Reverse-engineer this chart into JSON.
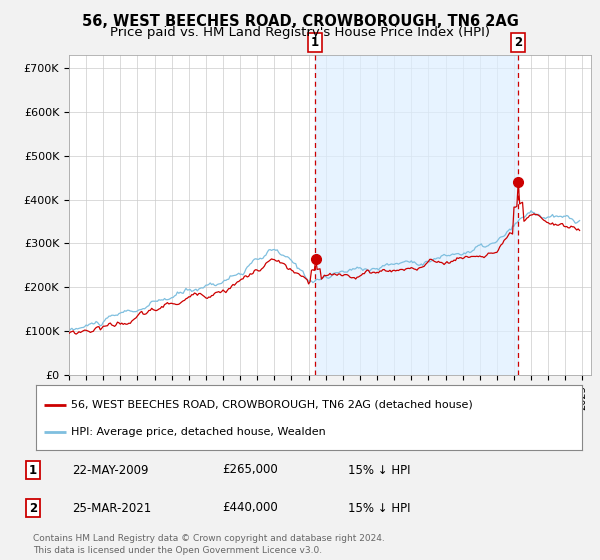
{
  "title": "56, WEST BEECHES ROAD, CROWBOROUGH, TN6 2AG",
  "subtitle": "Price paid vs. HM Land Registry's House Price Index (HPI)",
  "title_fontsize": 10.5,
  "subtitle_fontsize": 9.5,
  "ylabel_ticks": [
    "£0",
    "£100K",
    "£200K",
    "£300K",
    "£400K",
    "£500K",
    "£600K",
    "£700K"
  ],
  "ytick_values": [
    0,
    100000,
    200000,
    300000,
    400000,
    500000,
    600000,
    700000
  ],
  "ylim": [
    0,
    730000
  ],
  "xlim_start": 1995.0,
  "xlim_end": 2025.5,
  "hpi_color": "#7fbfdf",
  "hpi_fill_color": "#ddeeff",
  "price_color": "#cc0000",
  "bg_color": "#f2f2f2",
  "plot_bg_color": "#ffffff",
  "grid_color": "#cccccc",
  "legend_label_price": "56, WEST BEECHES ROAD, CROWBOROUGH, TN6 2AG (detached house)",
  "legend_label_hpi": "HPI: Average price, detached house, Wealden",
  "purchase1_date": 2009.38,
  "purchase1_price": 265000,
  "purchase2_date": 2021.23,
  "purchase2_price": 440000,
  "annotation1_date": "22-MAY-2009",
  "annotation1_price": "£265,000",
  "annotation1_hpi": "15% ↓ HPI",
  "annotation2_date": "25-MAR-2021",
  "annotation2_price": "£440,000",
  "annotation2_hpi": "15% ↓ HPI",
  "footer_line1": "Contains HM Land Registry data © Crown copyright and database right 2024.",
  "footer_line2": "This data is licensed under the Open Government Licence v3.0."
}
